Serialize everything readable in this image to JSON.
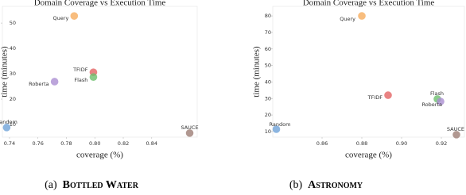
{
  "chart_data": [
    {
      "type": "scatter",
      "title": "Domain Coverage vs Execution Time",
      "xlabel": "coverage (%)",
      "ylabel": "time (minutes)",
      "caption_label": "(a)",
      "caption": "Bottled Water",
      "xlim": [
        0.735,
        0.872
      ],
      "ylim": [
        5,
        56.6
      ],
      "xticks": [
        0.74,
        0.76,
        0.78,
        {
          "value": 0.8,
          "label": "0.80"
        },
        0.82,
        0.84
      ],
      "yticks": [
        10,
        20,
        30,
        40,
        50
      ],
      "series": [
        {
          "name": "Random",
          "color": "#6fa3d8",
          "x": [
            0.738
          ],
          "values": [
            8.8
          ]
        },
        {
          "name": "Query",
          "color": "#f6ad5e",
          "x": [
            0.7855
          ],
          "values": [
            52.8
          ]
        },
        {
          "name": "TFIDF",
          "color": "#e36464",
          "x": [
            0.799
          ],
          "values": [
            30.6
          ]
        },
        {
          "name": "Flash",
          "color": "#6dbf6d",
          "x": [
            0.799
          ],
          "values": [
            28.7
          ]
        },
        {
          "name": "Roberta",
          "color": "#ab8fd2",
          "x": [
            0.7717
          ],
          "values": [
            26.9
          ]
        },
        {
          "name": "SAUCE",
          "color": "#9d7e76",
          "x": [
            0.8667
          ],
          "values": [
            6.6
          ]
        }
      ]
    },
    {
      "type": "scatter",
      "title": "Domain Coverage vs Execution Time",
      "xlabel": "coverage (%)",
      "ylabel": "time (minutes)",
      "caption_label": "(b)",
      "caption": "Astronomy",
      "xlim": [
        0.8352,
        0.9316
      ],
      "ylim": [
        6.6,
        85.8
      ],
      "xticks": [
        0.86,
        0.88,
        {
          "value": 0.9,
          "label": "0.90"
        },
        0.92
      ],
      "yticks": [
        10,
        20,
        30,
        40,
        50,
        60,
        70,
        80
      ],
      "series": [
        {
          "name": "Random",
          "color": "#6fa3d8",
          "x": [
            0.837
          ],
          "values": [
            11.4
          ]
        },
        {
          "name": "Query",
          "color": "#f6ad5e",
          "x": [
            0.88
          ],
          "values": [
            80
          ]
        },
        {
          "name": "TFIDF",
          "color": "#e36464",
          "x": [
            0.8932
          ],
          "values": [
            32
          ]
        },
        {
          "name": "Flash",
          "color": "#6dbf6d",
          "x": [
            0.918
          ],
          "values": [
            29.7
          ]
        },
        {
          "name": "Roberta",
          "color": "#ab8fd2",
          "x": [
            0.9196
          ],
          "values": [
            28.2
          ]
        },
        {
          "name": "SAUCE",
          "color": "#9d7e76",
          "x": [
            0.9276
          ],
          "values": [
            8.1
          ]
        }
      ]
    }
  ]
}
